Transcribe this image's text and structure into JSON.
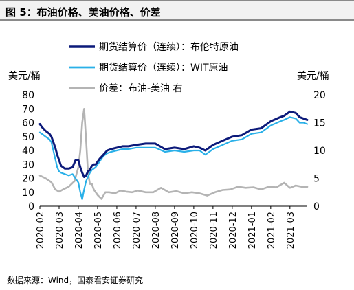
{
  "figure_title": "图 5：布油价格、美油价格、价差",
  "source_note": "数据来源：Wind，国泰君安证券研究",
  "colors": {
    "brent": "#0c1a7a",
    "wti": "#2ab0e8",
    "spread": "#b4b4b4",
    "title_bg": "#f2f2f2",
    "rule": "#8a8a8a"
  },
  "chart_data": {
    "type": "line",
    "title": "",
    "left_axis_label": "美元/桶",
    "right_axis_label": "美元/桶",
    "left_ylim": [
      0,
      80
    ],
    "right_ylim": [
      0,
      20
    ],
    "left_ticks": [
      0,
      10,
      20,
      30,
      40,
      50,
      60,
      70,
      80
    ],
    "right_ticks": [
      0,
      5,
      10,
      15,
      20
    ],
    "x_ticks": [
      "2020-02",
      "2020-03",
      "2020-04",
      "2020-05",
      "2020-06",
      "2020-07",
      "2020-08",
      "2020-09",
      "2020-10",
      "2020-11",
      "2020-12",
      "2021-01",
      "2021-02",
      "2021-03"
    ],
    "x_range": [
      0,
      13.9
    ],
    "grid": false,
    "legend_position": "top",
    "series": [
      {
        "name": "期货结算价（连续）：布伦特原油",
        "axis": "left",
        "x": [
          0,
          0.1,
          0.3,
          0.5,
          0.6,
          0.8,
          0.9,
          1.0,
          1.1,
          1.3,
          1.5,
          1.7,
          1.85,
          2.0,
          2.1,
          2.2,
          2.3,
          2.4,
          2.5,
          2.6,
          2.7,
          2.8,
          2.9,
          3.1,
          3.3,
          3.5,
          3.7,
          4.0,
          4.3,
          4.6,
          5.0,
          5.5,
          6.0,
          6.5,
          7.0,
          7.5,
          8.0,
          8.3,
          8.6,
          9.0,
          9.5,
          10.0,
          10.5,
          11.0,
          11.5,
          12.0,
          12.5,
          12.7,
          13.0,
          13.3,
          13.5,
          13.7,
          13.9
        ],
        "values": [
          59,
          57,
          54,
          52,
          50,
          42,
          37,
          33,
          29,
          27,
          27,
          28,
          33,
          33,
          28,
          24,
          21,
          22,
          25,
          26,
          29,
          30,
          30,
          34,
          37,
          40,
          41,
          42,
          43,
          43,
          44,
          45,
          45,
          41,
          42,
          41,
          43,
          42,
          40,
          44,
          47,
          50,
          51,
          55,
          56,
          61,
          64,
          65,
          68,
          67,
          64,
          63,
          62
        ]
      },
      {
        "name": "期货结算价（连续）：WIT原油",
        "axis": "left",
        "x": [
          0,
          0.1,
          0.3,
          0.5,
          0.6,
          0.8,
          0.9,
          1.0,
          1.1,
          1.3,
          1.5,
          1.7,
          1.85,
          2.0,
          2.1,
          2.2,
          2.3,
          2.4,
          2.5,
          2.6,
          2.7,
          2.8,
          2.9,
          3.1,
          3.3,
          3.5,
          3.7,
          4.0,
          4.3,
          4.6,
          5.0,
          5.5,
          6.0,
          6.5,
          7.0,
          7.5,
          8.0,
          8.3,
          8.6,
          9.0,
          9.5,
          10.0,
          10.5,
          11.0,
          11.5,
          12.0,
          12.5,
          12.7,
          13.0,
          13.3,
          13.5,
          13.7,
          13.9
        ],
        "values": [
          53,
          52,
          50,
          48,
          46,
          34,
          28,
          25,
          24,
          23,
          22,
          23,
          20,
          17,
          10,
          5,
          12,
          18,
          21,
          24,
          26,
          27,
          28,
          32,
          36,
          38,
          39,
          40,
          41,
          41,
          42,
          42,
          42,
          39,
          40,
          39,
          40,
          40,
          37,
          41,
          44,
          47,
          48,
          52,
          53,
          58,
          61,
          62,
          64,
          63,
          60,
          60,
          59
        ]
      },
      {
        "name": "价差：布油-美油 右",
        "axis": "right",
        "x": [
          0,
          0.3,
          0.6,
          0.8,
          1.0,
          1.2,
          1.5,
          1.8,
          2.0,
          2.1,
          2.2,
          2.3,
          2.4,
          2.5,
          2.6,
          2.7,
          2.8,
          3.0,
          3.2,
          3.4,
          3.6,
          3.9,
          4.2,
          4.5,
          4.8,
          5.1,
          5.5,
          5.9,
          6.3,
          6.7,
          7.1,
          7.5,
          7.9,
          8.3,
          8.7,
          9.1,
          9.5,
          9.9,
          10.3,
          10.7,
          11.1,
          11.5,
          11.9,
          12.3,
          12.7,
          13.0,
          13.3,
          13.6,
          13.9
        ],
        "values": [
          5.5,
          5,
          4.3,
          3,
          2.6,
          3,
          3.5,
          4.5,
          7,
          10,
          15,
          17.5,
          12,
          6,
          4,
          4,
          3,
          2,
          1.3,
          2.5,
          2.5,
          2.3,
          2.8,
          2.6,
          2.5,
          2.8,
          2.5,
          2.5,
          3.3,
          2.5,
          2.7,
          2.3,
          2.5,
          2.3,
          1.9,
          2.5,
          2.9,
          3,
          3.5,
          3.3,
          3.4,
          3,
          3.5,
          3.4,
          4.2,
          3.3,
          3.7,
          3.5,
          3.5
        ]
      }
    ]
  }
}
